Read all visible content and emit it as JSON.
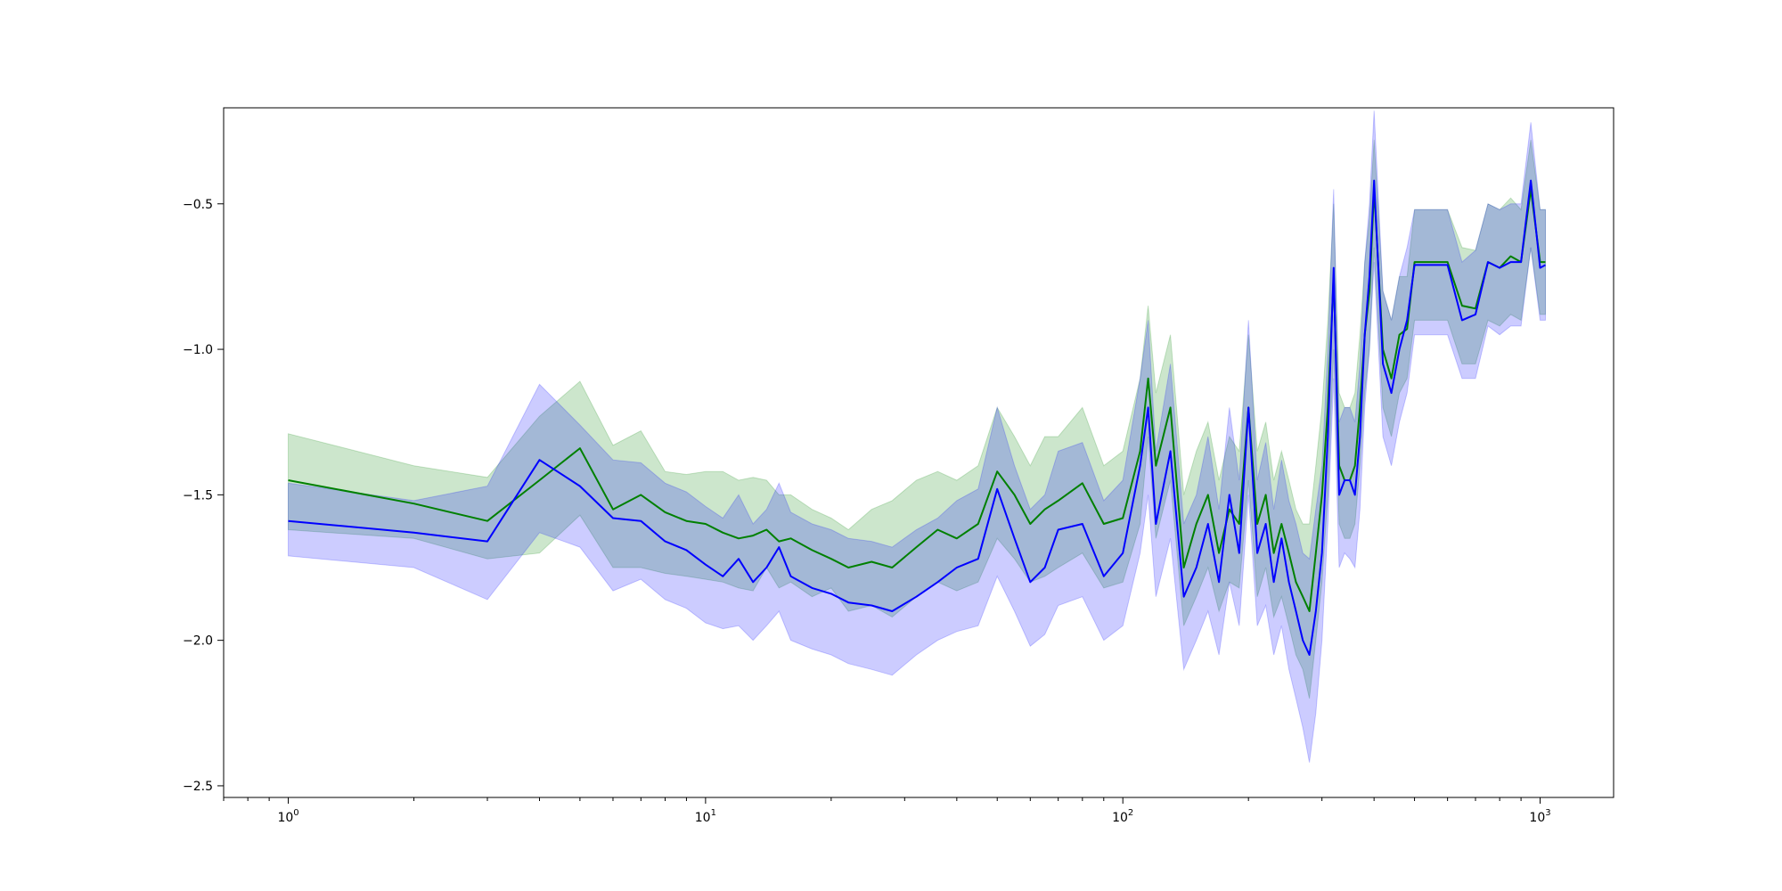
{
  "chart_data": {
    "type": "line",
    "title": "",
    "xlabel": "",
    "ylabel": "",
    "xscale": "log",
    "xlim": [
      0.7,
      1500
    ],
    "ylim": [
      -2.54,
      -0.17
    ],
    "grid": false,
    "legend": "none",
    "x_ticks": [
      {
        "value": 1,
        "base": "10",
        "exp": "0"
      },
      {
        "value": 10,
        "base": "10",
        "exp": "1"
      },
      {
        "value": 100,
        "base": "10",
        "exp": "2"
      },
      {
        "value": 1000,
        "base": "10",
        "exp": "3"
      }
    ],
    "y_ticks": [
      {
        "value": -0.5,
        "label": "−0.5"
      },
      {
        "value": -1.0,
        "label": "−1.0"
      },
      {
        "value": -1.5,
        "label": "−1.5"
      },
      {
        "value": -2.0,
        "label": "−2.0"
      },
      {
        "value": -2.5,
        "label": "−2.5"
      }
    ],
    "series": [
      {
        "color": "#008000",
        "band_color": "#008000",
        "band_opacity": 0.2,
        "x": [
          1,
          2,
          3,
          4,
          5,
          6,
          7,
          8,
          9,
          10,
          11,
          12,
          13,
          14,
          15,
          16,
          18,
          20,
          22,
          25,
          28,
          32,
          36,
          40,
          45,
          50,
          55,
          60,
          65,
          70,
          80,
          90,
          100,
          110,
          115,
          120,
          130,
          140,
          150,
          160,
          170,
          180,
          190,
          200,
          210,
          220,
          230,
          240,
          250,
          260,
          270,
          280,
          290,
          300,
          310,
          320,
          330,
          340,
          350,
          360,
          370,
          380,
          390,
          400,
          420,
          440,
          460,
          480,
          500,
          550,
          600,
          650,
          700,
          750,
          800,
          850,
          900,
          950,
          1000,
          1030
        ],
        "y": [
          -1.45,
          -1.53,
          -1.59,
          -1.45,
          -1.34,
          -1.55,
          -1.5,
          -1.56,
          -1.59,
          -1.6,
          -1.63,
          -1.65,
          -1.64,
          -1.62,
          -1.66,
          -1.65,
          -1.69,
          -1.72,
          -1.75,
          -1.73,
          -1.75,
          -1.68,
          -1.62,
          -1.65,
          -1.6,
          -1.42,
          -1.5,
          -1.6,
          -1.55,
          -1.52,
          -1.46,
          -1.6,
          -1.58,
          -1.35,
          -1.1,
          -1.4,
          -1.2,
          -1.75,
          -1.6,
          -1.5,
          -1.7,
          -1.55,
          -1.6,
          -1.2,
          -1.6,
          -1.5,
          -1.7,
          -1.6,
          -1.7,
          -1.8,
          -1.85,
          -1.9,
          -1.7,
          -1.5,
          -1.2,
          -0.75,
          -1.4,
          -1.45,
          -1.45,
          -1.4,
          -1.2,
          -0.95,
          -0.8,
          -0.45,
          -1.0,
          -1.1,
          -0.95,
          -0.93,
          -0.7,
          -0.7,
          -0.7,
          -0.85,
          -0.86,
          -0.7,
          -0.72,
          -0.68,
          -0.7,
          -0.45,
          -0.7,
          -0.7
        ],
        "lower": [
          -1.62,
          -1.65,
          -1.72,
          -1.7,
          -1.57,
          -1.75,
          -1.75,
          -1.77,
          -1.78,
          -1.79,
          -1.8,
          -1.82,
          -1.83,
          -1.75,
          -1.82,
          -1.8,
          -1.85,
          -1.82,
          -1.9,
          -1.88,
          -1.92,
          -1.85,
          -1.8,
          -1.83,
          -1.8,
          -1.65,
          -1.72,
          -1.8,
          -1.78,
          -1.75,
          -1.7,
          -1.82,
          -1.8,
          -1.6,
          -1.3,
          -1.65,
          -1.45,
          -1.95,
          -1.85,
          -1.75,
          -1.9,
          -1.8,
          -1.82,
          -1.45,
          -1.85,
          -1.75,
          -1.92,
          -1.85,
          -1.95,
          -2.05,
          -2.1,
          -2.2,
          -2.0,
          -1.8,
          -1.5,
          -1.0,
          -1.6,
          -1.65,
          -1.65,
          -1.6,
          -1.4,
          -1.15,
          -1.0,
          -0.65,
          -1.2,
          -1.3,
          -1.15,
          -1.1,
          -0.9,
          -0.9,
          -0.9,
          -1.05,
          -1.05,
          -0.9,
          -0.92,
          -0.88,
          -0.9,
          -0.65,
          -0.88,
          -0.88
        ],
        "upper": [
          -1.29,
          -1.4,
          -1.44,
          -1.23,
          -1.11,
          -1.33,
          -1.28,
          -1.42,
          -1.43,
          -1.42,
          -1.42,
          -1.45,
          -1.44,
          -1.45,
          -1.5,
          -1.5,
          -1.55,
          -1.58,
          -1.62,
          -1.55,
          -1.52,
          -1.45,
          -1.42,
          -1.45,
          -1.4,
          -1.2,
          -1.3,
          -1.4,
          -1.3,
          -1.3,
          -1.2,
          -1.4,
          -1.35,
          -1.1,
          -0.85,
          -1.15,
          -0.95,
          -1.5,
          -1.35,
          -1.25,
          -1.45,
          -1.3,
          -1.35,
          -0.95,
          -1.35,
          -1.25,
          -1.45,
          -1.35,
          -1.45,
          -1.55,
          -1.6,
          -1.6,
          -1.4,
          -1.2,
          -0.9,
          -0.5,
          -1.15,
          -1.2,
          -1.2,
          -1.15,
          -0.95,
          -0.7,
          -0.55,
          -0.28,
          -0.8,
          -0.9,
          -0.75,
          -0.75,
          -0.52,
          -0.52,
          -0.52,
          -0.65,
          -0.66,
          -0.5,
          -0.52,
          -0.48,
          -0.52,
          -0.28,
          -0.52,
          -0.52
        ]
      },
      {
        "color": "#0000ff",
        "band_color": "#0000ff",
        "band_opacity": 0.2,
        "x": [
          1,
          2,
          3,
          4,
          5,
          6,
          7,
          8,
          9,
          10,
          11,
          12,
          13,
          14,
          15,
          16,
          18,
          20,
          22,
          25,
          28,
          32,
          36,
          40,
          45,
          50,
          55,
          60,
          65,
          70,
          80,
          90,
          100,
          110,
          115,
          120,
          130,
          140,
          150,
          160,
          170,
          180,
          190,
          200,
          210,
          220,
          230,
          240,
          250,
          260,
          270,
          280,
          290,
          300,
          310,
          320,
          330,
          340,
          350,
          360,
          370,
          380,
          390,
          400,
          420,
          440,
          460,
          480,
          500,
          550,
          600,
          650,
          700,
          750,
          800,
          850,
          900,
          950,
          1000,
          1030
        ],
        "y": [
          -1.59,
          -1.63,
          -1.66,
          -1.38,
          -1.47,
          -1.58,
          -1.59,
          -1.66,
          -1.69,
          -1.74,
          -1.78,
          -1.72,
          -1.8,
          -1.75,
          -1.68,
          -1.78,
          -1.82,
          -1.84,
          -1.87,
          -1.88,
          -1.9,
          -1.85,
          -1.8,
          -1.75,
          -1.72,
          -1.48,
          -1.65,
          -1.8,
          -1.75,
          -1.62,
          -1.6,
          -1.78,
          -1.7,
          -1.4,
          -1.2,
          -1.6,
          -1.35,
          -1.85,
          -1.75,
          -1.6,
          -1.8,
          -1.5,
          -1.7,
          -1.2,
          -1.7,
          -1.6,
          -1.8,
          -1.65,
          -1.8,
          -1.9,
          -2.0,
          -2.05,
          -1.9,
          -1.7,
          -1.3,
          -0.72,
          -1.5,
          -1.45,
          -1.45,
          -1.5,
          -1.3,
          -0.95,
          -0.75,
          -0.42,
          -1.05,
          -1.15,
          -1.0,
          -0.9,
          -0.71,
          -0.71,
          -0.71,
          -0.9,
          -0.88,
          -0.7,
          -0.72,
          -0.7,
          -0.7,
          -0.42,
          -0.72,
          -0.71
        ],
        "lower": [
          -1.71,
          -1.75,
          -1.86,
          -1.63,
          -1.68,
          -1.83,
          -1.79,
          -1.86,
          -1.89,
          -1.94,
          -1.96,
          -1.95,
          -2.0,
          -1.95,
          -1.9,
          -2.0,
          -2.03,
          -2.05,
          -2.08,
          -2.1,
          -2.12,
          -2.05,
          -2.0,
          -1.97,
          -1.95,
          -1.78,
          -1.9,
          -2.02,
          -1.98,
          -1.88,
          -1.85,
          -2.0,
          -1.95,
          -1.7,
          -1.5,
          -1.85,
          -1.65,
          -2.1,
          -2.0,
          -1.9,
          -2.05,
          -1.8,
          -1.95,
          -1.5,
          -1.95,
          -1.88,
          -2.05,
          -1.95,
          -2.1,
          -2.2,
          -2.3,
          -2.42,
          -2.25,
          -2.0,
          -1.6,
          -1.1,
          -1.75,
          -1.7,
          -1.72,
          -1.75,
          -1.55,
          -1.2,
          -1.0,
          -0.7,
          -1.3,
          -1.4,
          -1.25,
          -1.15,
          -0.95,
          -0.95,
          -0.95,
          -1.1,
          -1.1,
          -0.92,
          -0.95,
          -0.92,
          -0.92,
          -0.65,
          -0.9,
          -0.9
        ],
        "upper": [
          -1.46,
          -1.52,
          -1.47,
          -1.12,
          -1.26,
          -1.38,
          -1.39,
          -1.46,
          -1.49,
          -1.54,
          -1.58,
          -1.5,
          -1.6,
          -1.55,
          -1.46,
          -1.56,
          -1.6,
          -1.62,
          -1.65,
          -1.66,
          -1.68,
          -1.62,
          -1.58,
          -1.52,
          -1.48,
          -1.2,
          -1.4,
          -1.55,
          -1.5,
          -1.35,
          -1.32,
          -1.52,
          -1.45,
          -1.1,
          -0.9,
          -1.35,
          -1.05,
          -1.6,
          -1.5,
          -1.3,
          -1.55,
          -1.2,
          -1.45,
          -0.9,
          -1.45,
          -1.32,
          -1.55,
          -1.38,
          -1.52,
          -1.6,
          -1.7,
          -1.72,
          -1.55,
          -1.4,
          -1.0,
          -0.45,
          -1.25,
          -1.2,
          -1.2,
          -1.25,
          -1.05,
          -0.7,
          -0.5,
          -0.18,
          -0.8,
          -0.9,
          -0.75,
          -0.65,
          -0.52,
          -0.52,
          -0.52,
          -0.7,
          -0.66,
          -0.5,
          -0.52,
          -0.5,
          -0.5,
          -0.22,
          -0.52,
          -0.52
        ]
      }
    ]
  }
}
